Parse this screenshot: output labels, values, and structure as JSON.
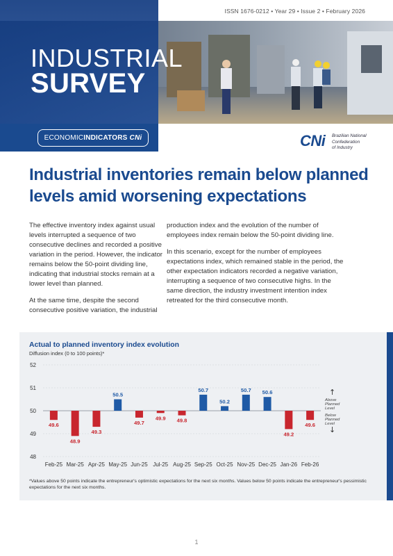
{
  "header": {
    "issn": "ISSN 1676-0212 • Year 29 • Issue 2 • February 2026",
    "title_line1": "INDUSTRIAL",
    "title_line2": "SURVEY"
  },
  "badge": {
    "economic": "ECONOMIC",
    "indicators": "INDICATORS",
    "brand": "CNi"
  },
  "logo": {
    "mark": "CNi",
    "name_line1": "Brazilian National",
    "name_line2": "Confederation",
    "name_line3": "of Industry"
  },
  "headline": "Industrial inventories remain below planned levels amid worsening expectations",
  "body": {
    "col1_p1": "The effective inventory index against usual levels interrupted a sequence of two consecutive declines and recorded a positive variation in the period. However, the indicator remains below the 50-point dividing line, indicating that industrial stocks remain at a lower level than planned.",
    "col1_p2": "At the same time, despite the second consecutive positive variation, the industrial",
    "col2_p1": "production index and the evolution of the number of employees index remain below the 50-point dividing line.",
    "col2_p2": "In this scenario, except for the number of employees expectations index, which remained stable in the period, the other expectation indicators recorded a negative variation, interrupting a sequence of two consecutive highs. In the same direction, the industry investment intention index retreated for the third consecutive month."
  },
  "chart_data": {
    "type": "bar",
    "title": "Actual to planned inventory index evolution",
    "subtitle": "Diffusion index (0 to 100 points)*",
    "categories": [
      "Feb-25",
      "Mar-25",
      "Apr-25",
      "May-25",
      "Jun-25",
      "Jul-25",
      "Aug-25",
      "Sep-25",
      "Oct-25",
      "Nov-25",
      "Dec-25",
      "Jan-26",
      "Feb-26"
    ],
    "values": [
      49.6,
      48.9,
      49.3,
      50.5,
      49.7,
      49.9,
      49.8,
      50.7,
      50.2,
      50.7,
      50.6,
      49.2,
      49.6
    ],
    "value_labels": [
      "49.6",
      "48.9",
      "49.3",
      "50.5",
      "49.7",
      "49.9",
      "49.8",
      "50.7",
      "50.2",
      "50.7",
      "50.6",
      "49.2",
      "49.6"
    ],
    "baseline": 50,
    "ylim": [
      48,
      52
    ],
    "yticks": [
      "48",
      "49",
      "50",
      "51",
      "52"
    ],
    "grid": true,
    "colors": {
      "above": "#1f5aa6",
      "below": "#c8262e"
    },
    "annotations": {
      "above_line1": "Above",
      "above_line2": "Planned",
      "above_line3": "Level",
      "below_line1": "Below",
      "below_line2": "Planned",
      "below_line3": "Level"
    }
  },
  "footnote": "*Values above 50 points indicate the entrepreneur's optimistic expectations for the next six months. Values below 50 points indicate the entrepreneur's pessimistic expectations for the next six months.",
  "page_number": "1"
}
